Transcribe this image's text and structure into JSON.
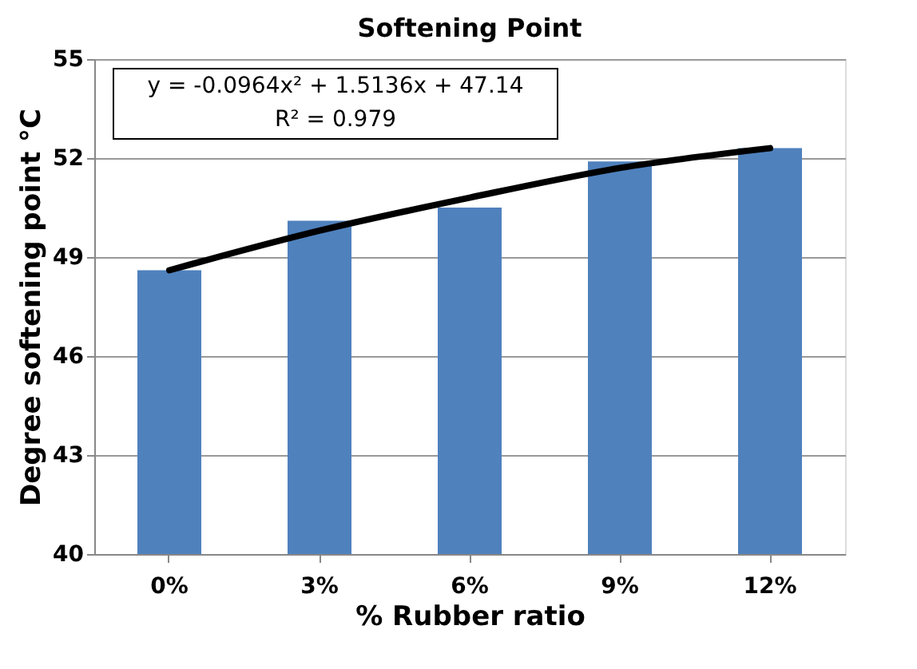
{
  "chart_data": {
    "type": "bar",
    "title": "Softening Point",
    "xlabel": "% Rubber ratio",
    "ylabel": "Degree softening point °C",
    "categories": [
      "0%",
      "3%",
      "6%",
      "9%",
      "12%"
    ],
    "series": [
      {
        "color": "#4f81bd",
        "values": [
          48.6,
          50.1,
          50.5,
          51.9,
          52.3
        ]
      },
      {
        "type": "line",
        "color": "#000000",
        "x": [
          "0%",
          "3%",
          "6%",
          "9%",
          "12%"
        ],
        "values": [
          48.6,
          49.8,
          50.8,
          51.7,
          52.3
        ]
      }
    ],
    "ylim": [
      40,
      55
    ],
    "yticks": [
      40,
      43,
      46,
      49,
      52,
      55
    ],
    "grid": "y",
    "line_style": "solid",
    "marker": "none",
    "annotations": [
      "y = -0.0964x² + 1.5136x + 47.14",
      "R² = 0.979"
    ]
  }
}
